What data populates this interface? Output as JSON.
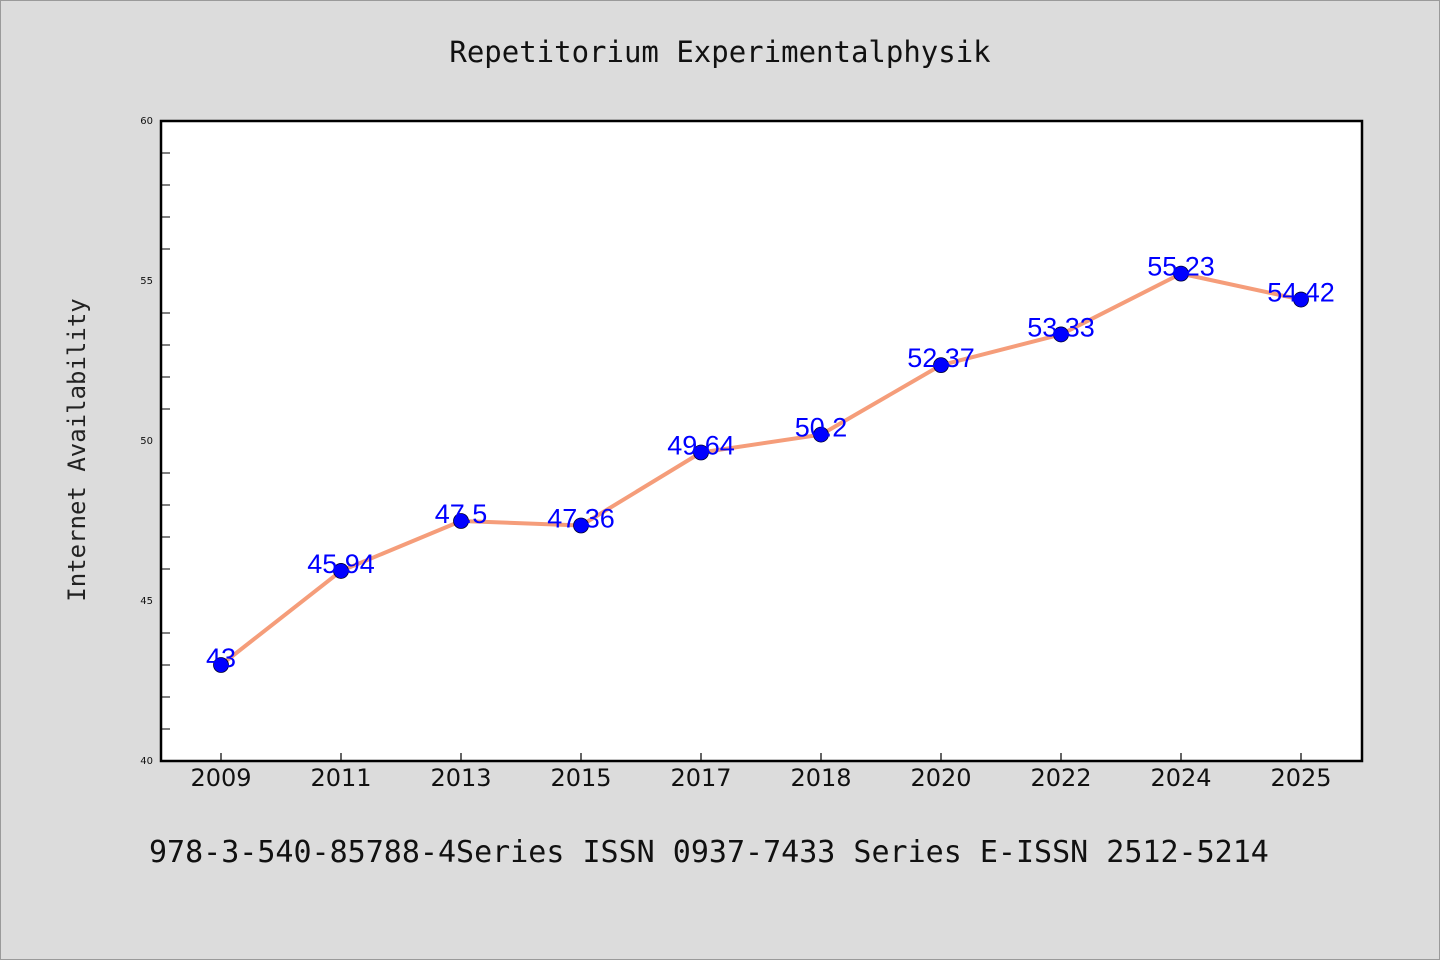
{
  "chart_data": {
    "type": "line",
    "title": "Repetitorium Experimentalphysik",
    "xlabel": "",
    "ylabel": "Internet Availability",
    "categories": [
      "2009",
      "2011",
      "2013",
      "2015",
      "2017",
      "2018",
      "2020",
      "2022",
      "2024",
      "2025"
    ],
    "series": [
      {
        "values": [
          43,
          45.94,
          47.5,
          47.36,
          49.64,
          50.2,
          52.37,
          53.33,
          55.23,
          54.42
        ],
        "data_labels": [
          "43",
          "45.94",
          "47.5",
          "47.36",
          "49.64",
          "50.2",
          "52.37",
          "53.33",
          "55.23",
          "54.42"
        ]
      }
    ],
    "ylim": [
      40,
      60
    ],
    "yticks": [
      "40",
      "45",
      "50",
      "55",
      "60"
    ],
    "grid": false,
    "line_color": "#f59d7a",
    "marker_color": "#0000ff",
    "label_color": "#0000ff"
  },
  "footer": "978-3-540-85788-4Series ISSN 0937-7433 Series E-ISSN 2512-5214"
}
